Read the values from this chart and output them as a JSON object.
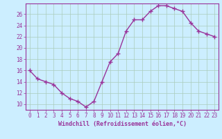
{
  "x": [
    0,
    1,
    2,
    3,
    4,
    5,
    6,
    7,
    8,
    9,
    10,
    11,
    12,
    13,
    14,
    15,
    16,
    17,
    18,
    19,
    20,
    21,
    22,
    23
  ],
  "y": [
    16,
    14.5,
    14,
    13.5,
    12,
    11,
    10.5,
    9.5,
    10.5,
    14,
    17.5,
    19,
    23,
    25,
    25,
    26.5,
    27.5,
    27.5,
    27,
    26.5,
    24.5,
    23,
    22.5,
    22
  ],
  "line_color": "#993399",
  "marker": "+",
  "background_color": "#cceeff",
  "grid_color": "#aaccbb",
  "xlabel": "Windchill (Refroidissement éolien,°C)",
  "tick_color": "#993399",
  "ylim": [
    9.0,
    27.9
  ],
  "yticks": [
    10,
    12,
    14,
    16,
    18,
    20,
    22,
    24,
    26
  ],
  "xticks": [
    0,
    1,
    2,
    3,
    4,
    5,
    6,
    7,
    8,
    9,
    10,
    11,
    12,
    13,
    14,
    15,
    16,
    17,
    18,
    19,
    20,
    21,
    22,
    23
  ],
  "xtick_labels": [
    "0",
    "1",
    "2",
    "3",
    "4",
    "5",
    "6",
    "7",
    "8",
    "9",
    "10",
    "11",
    "12",
    "13",
    "14",
    "15",
    "16",
    "17",
    "18",
    "19",
    "20",
    "21",
    "22",
    "23"
  ],
  "line_width": 1.0,
  "marker_size": 4,
  "spine_color": "#993399"
}
